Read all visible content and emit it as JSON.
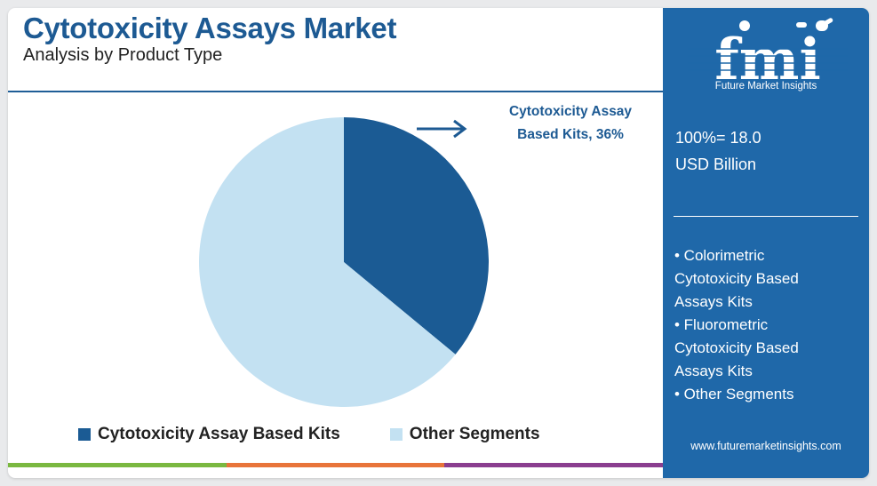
{
  "header": {
    "title": "Cytotoxicity Assays Market",
    "subtitle": "Analysis by Product Type"
  },
  "callout": {
    "line1": "Cytotoxicity Assay",
    "line2": "Based Kits, 36%"
  },
  "chart_data": {
    "type": "pie",
    "categories": [
      "Cytotoxicity Assay Based Kits",
      "Other Segments"
    ],
    "values": [
      36,
      64
    ],
    "unit": "%",
    "colors": [
      "#1b5b94",
      "#c3e1f2"
    ],
    "legend_position": "bottom",
    "annotations": [
      "Cytotoxicity Assay Based Kits, 36%"
    ]
  },
  "legend": [
    {
      "label": "Cytotoxicity Assay Based Kits",
      "color": "#1b5b94"
    },
    {
      "label": "Other Segments",
      "color": "#c3e1f2"
    }
  ],
  "side_panel": {
    "logo_text": "fmi",
    "logo_tagline": "Future Market Insights",
    "total_line1": "100%= 18.0",
    "total_line2": "USD Billion",
    "segments": [
      {
        "line1": "• Colorimetric",
        "line2": "Cytotoxicity Based",
        "line3": "Assays Kits"
      },
      {
        "line1": "• Fluorometric",
        "line2": "Cytotoxicity Based",
        "line3": "Assays Kits"
      },
      {
        "line1": "• Other Segments"
      }
    ],
    "website": "www.futuremarketinsights.com"
  },
  "colors": {
    "brand_blue": "#1f68a9",
    "title_blue": "#1d5a93",
    "bar_green": "#7ab840",
    "bar_orange": "#e8743a",
    "bar_purple": "#8a3e8f"
  }
}
